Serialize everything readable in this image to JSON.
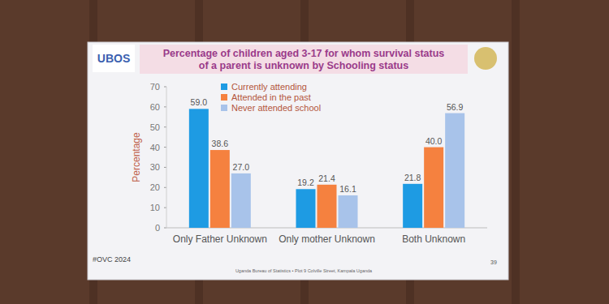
{
  "chart_data": {
    "type": "bar",
    "title": "Percentage of children aged 3-17 for whom survival status of a parent is unknown by Schooling status",
    "y_label": "Percentage",
    "categories": [
      "Only Father Unknown",
      "Only mother Unknown",
      "Both Unknown"
    ],
    "series": [
      {
        "name": "Currently attending",
        "color": "#1e9be3",
        "values": [
          59.0,
          19.2,
          21.8
        ],
        "value_labels": [
          "59.0",
          "19.2",
          "21.8"
        ]
      },
      {
        "name": "Attended in the past",
        "color": "#f5813f",
        "values": [
          38.6,
          21.4,
          40.0
        ],
        "value_labels": [
          "38.6",
          "21.4",
          "40.0"
        ]
      },
      {
        "name": "Never attended school",
        "color": "#a8c3ea",
        "values": [
          27.0,
          16.1,
          56.9
        ],
        "value_labels": [
          "27.0",
          "16.1",
          "56.9"
        ]
      }
    ],
    "ylim": [
      0,
      70
    ],
    "yticks": [
      0,
      10,
      20,
      30,
      40,
      50,
      60,
      70
    ],
    "grid": false,
    "legend": "top",
    "data_labels": true,
    "annotations": [
      "UBOS",
      "#OVC 2024",
      "39",
      "Uganda Bureau of Statistics • Plot 9 Colville Street, Kampala Uganda"
    ]
  }
}
